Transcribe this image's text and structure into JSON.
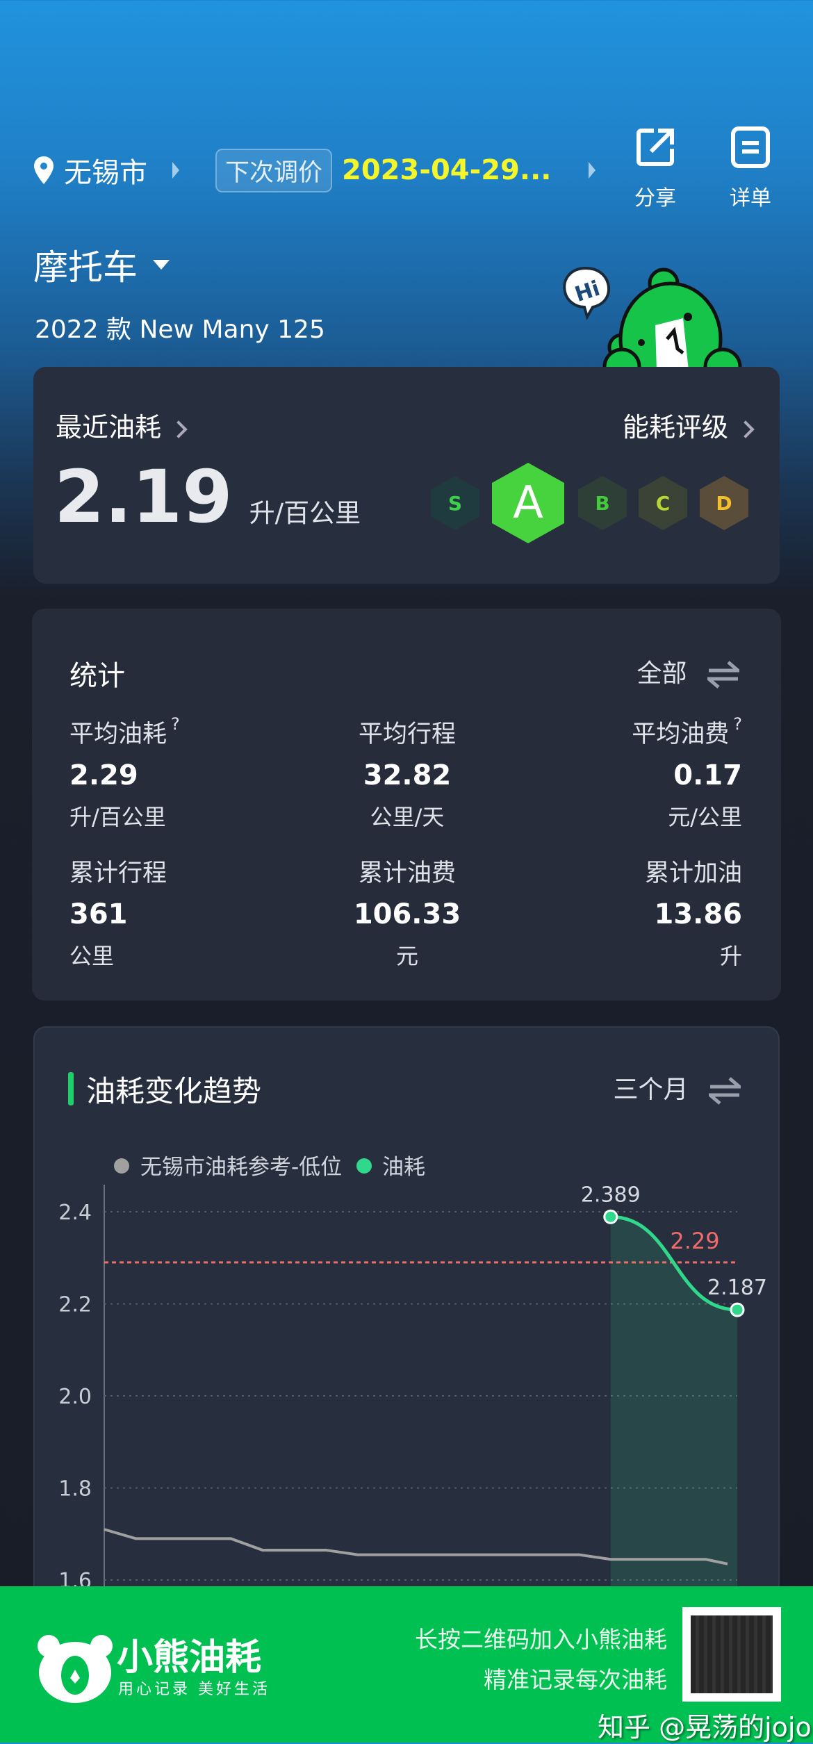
{
  "header": {
    "city": "无锡市",
    "next_adjust_label": "下次调价",
    "next_adjust_date": "2023-04-29...",
    "share_label": "分享",
    "detail_label": "详单"
  },
  "vehicle": {
    "type": "摩托车",
    "model": "2022 款 New Many 125",
    "mascot_text": "Hi"
  },
  "recent": {
    "title": "最近油耗",
    "value": "2.19",
    "unit": "升/百公里",
    "rating_title": "能耗评级",
    "grades": [
      "S",
      "A",
      "B",
      "C",
      "D"
    ],
    "current_grade": "A"
  },
  "stats": {
    "title": "统计",
    "filter": "全部",
    "items": [
      {
        "label": "平均油耗",
        "help": "?",
        "value": "2.29",
        "unit": "升/百公里"
      },
      {
        "label": "平均行程",
        "help": "",
        "value": "32.82",
        "unit": "公里/天"
      },
      {
        "label": "平均油费",
        "help": "?",
        "value": "0.17",
        "unit": "元/公里"
      },
      {
        "label": "累计行程",
        "help": "",
        "value": "361",
        "unit": "公里"
      },
      {
        "label": "累计油费",
        "help": "",
        "value": "106.33",
        "unit": "元"
      },
      {
        "label": "累计加油",
        "help": "",
        "value": "13.86",
        "unit": "升"
      }
    ]
  },
  "trend": {
    "title": "油耗变化趋势",
    "filter": "三个月"
  },
  "chart_data": {
    "type": "line",
    "legend": [
      "无锡市油耗参考-低位",
      "油耗"
    ],
    "legend_position": "top-left",
    "yticks": [
      "2.4",
      "2.2",
      "2.0",
      "1.8",
      "1.6"
    ],
    "ylim": [
      1.6,
      2.45
    ],
    "grid": true,
    "average_line": {
      "value": 2.29,
      "label": "2.29",
      "color": "#f26b6b"
    },
    "series": [
      {
        "name": "无锡市油耗参考-低位",
        "color": "#a0a0a0",
        "values": [
          1.71,
          1.69,
          1.69,
          1.69,
          1.69,
          1.665,
          1.665,
          1.665,
          1.655,
          1.655,
          1.655,
          1.655,
          1.655,
          1.655,
          1.655,
          1.655,
          1.645,
          1.645,
          1.645,
          1.645,
          1.635
        ]
      },
      {
        "name": "油耗",
        "color": "#2fd88a",
        "values": [
          null,
          null,
          null,
          null,
          null,
          null,
          null,
          null,
          null,
          null,
          null,
          null,
          null,
          null,
          null,
          null,
          2.389,
          null,
          null,
          null,
          2.187
        ],
        "labels": [
          "2.389",
          "2.187"
        ]
      }
    ]
  },
  "banner": {
    "brand": "小熊油耗",
    "tagline": "用心记录 美好生活",
    "line1": "长按二维码加入小熊油耗",
    "line2": "精准记录每次油耗",
    "watermark": "知乎 @晃荡的jojo"
  }
}
